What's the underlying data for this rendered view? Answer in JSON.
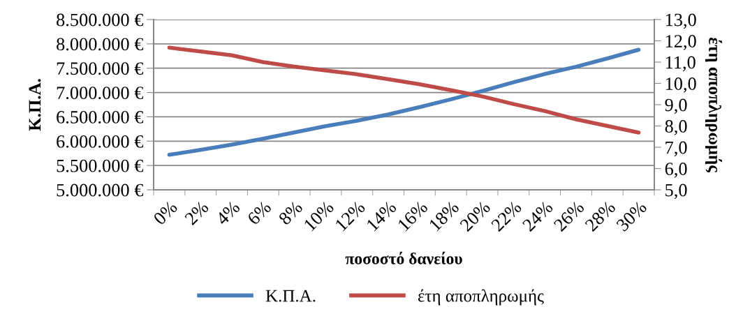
{
  "chart_data": {
    "type": "line",
    "xlabel": "ποσοστό δανείου",
    "ylabel": "Κ.Π.Α.",
    "y2label": "έτη αποπληρωμής",
    "categories": [
      "0%",
      "2%",
      "4%",
      "6%",
      "8%",
      "10%",
      "12%",
      "14%",
      "16%",
      "18%",
      "20%",
      "22%",
      "24%",
      "26%",
      "28%",
      "30%"
    ],
    "series": [
      {
        "name": "Κ.Π.Α.",
        "color": "#4a7ebb",
        "values": [
          5720000,
          5820000,
          5930000,
          6050000,
          6180000,
          6310000,
          6420000,
          6550000,
          6700000,
          6860000,
          7030000,
          7210000,
          7380000,
          7530000,
          7700000,
          7880000
        ]
      },
      {
        "name": "έτη αποπληρωμής",
        "color": "#be4b48",
        "axis": "y2",
        "values": [
          11.68,
          11.5,
          11.32,
          11.0,
          10.79,
          10.61,
          10.43,
          10.2,
          9.96,
          9.68,
          9.39,
          9.03,
          8.7,
          8.31,
          8.0,
          7.69
        ]
      }
    ],
    "ylim": [
      5000000,
      8500000
    ],
    "yticks": [
      {
        "value": 5000000,
        "label": "5.000.000 €"
      },
      {
        "value": 5500000,
        "label": "5.500.000 €"
      },
      {
        "value": 6000000,
        "label": "6.000.000 €"
      },
      {
        "value": 6500000,
        "label": "6.500.000 €"
      },
      {
        "value": 7000000,
        "label": "7.000.000 €"
      },
      {
        "value": 7500000,
        "label": "7.500.000 €"
      },
      {
        "value": 8000000,
        "label": "8.000.000 €"
      },
      {
        "value": 8500000,
        "label": "8.500.000 €"
      }
    ],
    "y2lim": [
      5,
      13
    ],
    "y2ticks": [
      {
        "value": 5,
        "label": "5,0"
      },
      {
        "value": 6,
        "label": "6,0"
      },
      {
        "value": 7,
        "label": "7,0"
      },
      {
        "value": 8,
        "label": "8,0"
      },
      {
        "value": 9,
        "label": "9,0"
      },
      {
        "value": 10,
        "label": "10,0"
      },
      {
        "value": 11,
        "label": "11,0"
      },
      {
        "value": 12,
        "label": "12,0"
      },
      {
        "value": 13,
        "label": "13,0"
      }
    ],
    "grid": "y",
    "legend": "bottom",
    "marker": "none",
    "line_style": "solid"
  }
}
